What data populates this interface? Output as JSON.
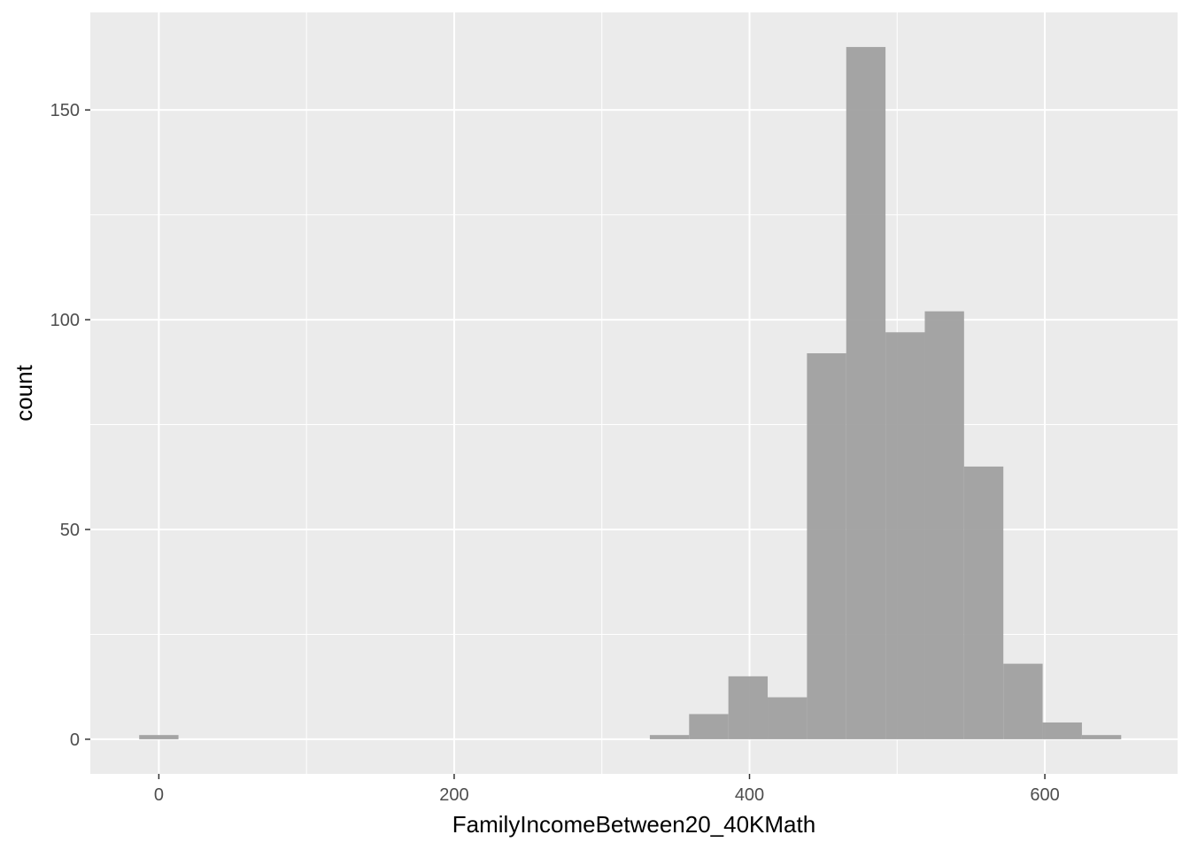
{
  "chart_data": {
    "type": "histogram",
    "title": "",
    "xlabel": "FamilyIncomeBetween20_40KMath",
    "ylabel": "count",
    "xlim": [
      -46.4,
      689.9
    ],
    "ylim": [
      -8.25,
      173.25
    ],
    "x_ticks": [
      0,
      200,
      400,
      600
    ],
    "x_tick_labels": [
      "0",
      "200",
      "400",
      "600"
    ],
    "x_minor_ticks": [
      100,
      300,
      500
    ],
    "y_ticks": [
      0,
      50,
      100,
      150
    ],
    "y_tick_labels": [
      "0",
      "50",
      "100",
      "150"
    ],
    "y_minor_ticks": [
      25,
      75,
      125
    ],
    "bin_width": 26.6,
    "bins": [
      {
        "x0": -13.3,
        "x1": 13.3,
        "count": 1
      },
      {
        "x0": 13.3,
        "x1": 39.9,
        "count": 0
      },
      {
        "x0": 39.9,
        "x1": 66.5,
        "count": 0
      },
      {
        "x0": 66.5,
        "x1": 93.1,
        "count": 0
      },
      {
        "x0": 93.1,
        "x1": 119.7,
        "count": 0
      },
      {
        "x0": 119.7,
        "x1": 146.3,
        "count": 0
      },
      {
        "x0": 146.3,
        "x1": 172.9,
        "count": 0
      },
      {
        "x0": 172.9,
        "x1": 199.5,
        "count": 0
      },
      {
        "x0": 199.5,
        "x1": 226.1,
        "count": 0
      },
      {
        "x0": 226.1,
        "x1": 252.7,
        "count": 0
      },
      {
        "x0": 252.7,
        "x1": 279.3,
        "count": 0
      },
      {
        "x0": 279.3,
        "x1": 305.9,
        "count": 0
      },
      {
        "x0": 305.9,
        "x1": 332.5,
        "count": 0
      },
      {
        "x0": 332.5,
        "x1": 359.1,
        "count": 1
      },
      {
        "x0": 359.1,
        "x1": 385.7,
        "count": 6
      },
      {
        "x0": 385.7,
        "x1": 412.3,
        "count": 15
      },
      {
        "x0": 412.3,
        "x1": 438.9,
        "count": 10
      },
      {
        "x0": 438.9,
        "x1": 465.5,
        "count": 92
      },
      {
        "x0": 465.5,
        "x1": 492.1,
        "count": 165
      },
      {
        "x0": 492.1,
        "x1": 518.7,
        "count": 97
      },
      {
        "x0": 518.7,
        "x1": 545.3,
        "count": 102
      },
      {
        "x0": 545.3,
        "x1": 571.9,
        "count": 65
      },
      {
        "x0": 571.9,
        "x1": 598.5,
        "count": 18
      },
      {
        "x0": 598.5,
        "x1": 625.1,
        "count": 4
      },
      {
        "x0": 625.1,
        "x1": 651.7,
        "count": 1
      }
    ],
    "colors": {
      "panel_background": "#ebebeb",
      "grid": "#ffffff",
      "bar_fill": "#a0a0a0",
      "tick_mark": "#333333"
    },
    "grid": true,
    "legend": "none"
  }
}
